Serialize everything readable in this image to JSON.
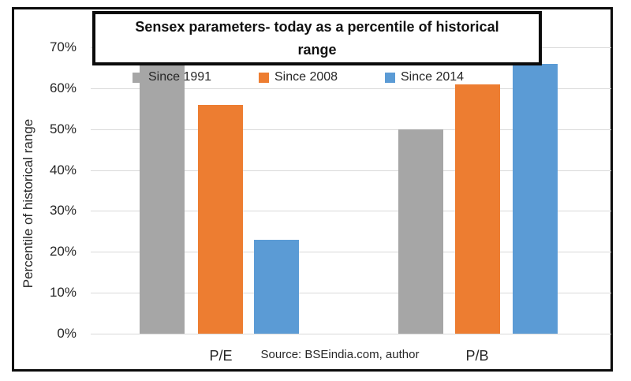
{
  "title_lines": [
    "Sensex parameters- today as a percentile of historical",
    "range"
  ],
  "source_note": "Source: BSEindia.com, author",
  "chart_data": {
    "type": "bar",
    "title": "Sensex parameters- today as a percentile of historical range",
    "xlabel": "",
    "ylabel": "Percentile of historical range",
    "categories": [
      "P/E",
      "P/B"
    ],
    "series": [
      {
        "name": "Since 1991",
        "color": "#a6a6a6",
        "values": [
          66,
          50
        ]
      },
      {
        "name": "Since 2008",
        "color": "#ed7d31",
        "values": [
          56,
          61
        ]
      },
      {
        "name": "Since 2014",
        "color": "#5b9bd5",
        "values": [
          23,
          66
        ]
      }
    ],
    "ylim": [
      0,
      70
    ],
    "yticks": [
      "0%",
      "10%",
      "20%",
      "30%",
      "40%",
      "50%",
      "60%",
      "70%"
    ],
    "grid": true,
    "legend_position": "top-inside",
    "colors": {
      "gridline": "#d9d9d9",
      "text": "#262626",
      "frame_border": "#0b0b0b",
      "background": "#ffffff"
    }
  }
}
